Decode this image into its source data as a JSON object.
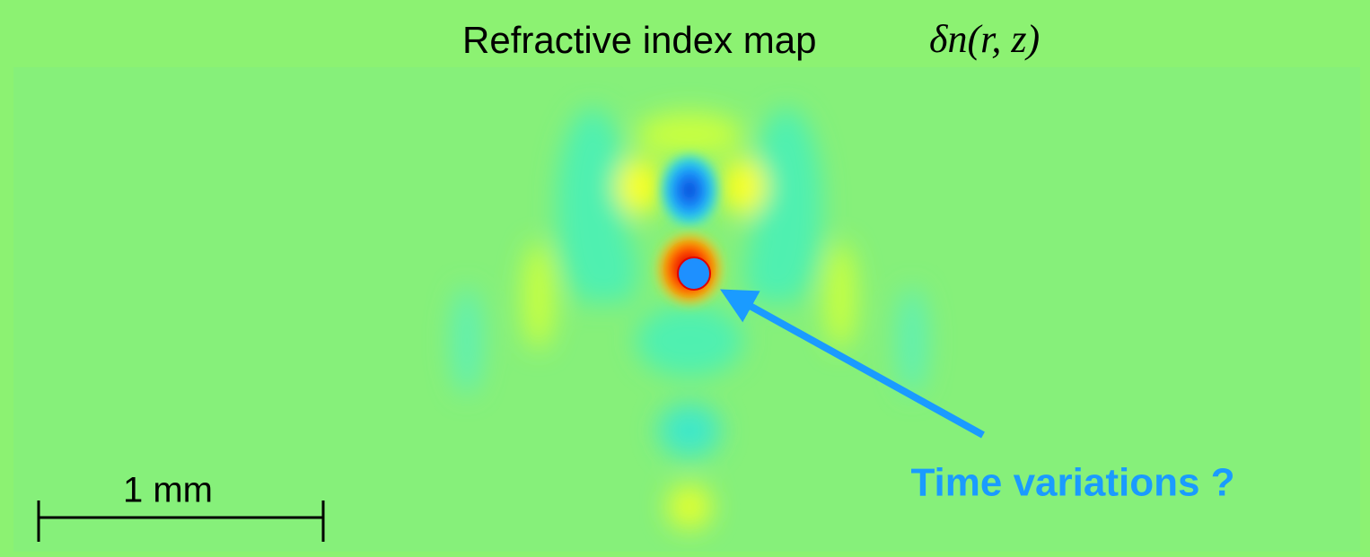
{
  "title": "Refractive index map",
  "formula": "δn(r, z)",
  "scale_bar": {
    "label": "1 mm"
  },
  "annotation": "Time variations ?"
}
